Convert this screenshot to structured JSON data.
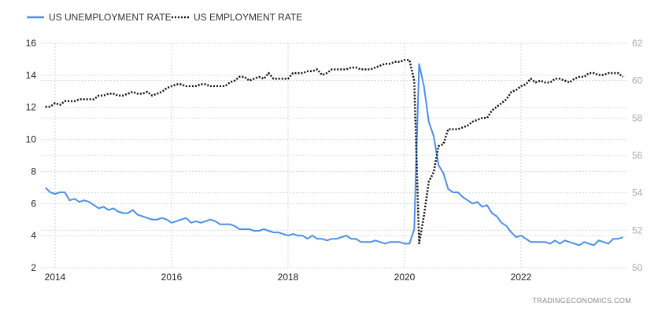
{
  "chart_data": {
    "type": "line",
    "title": "",
    "legend_position": "top-left",
    "watermark": "TRADINGECONOMICS.COM",
    "x_start": "2013-11",
    "x_frequency": "monthly",
    "x_ticks": [
      "2014",
      "2016",
      "2018",
      "2020",
      "2022"
    ],
    "y_left": {
      "range": [
        2,
        16
      ],
      "ticks": [
        "2",
        "4",
        "6",
        "8",
        "10",
        "12",
        "14",
        "16"
      ]
    },
    "y_right": {
      "range": [
        50,
        62
      ],
      "ticks": [
        "50",
        "52",
        "54",
        "56",
        "58",
        "60",
        "62"
      ]
    },
    "grid": true,
    "series": [
      {
        "name": "US UNEMPLOYMENT RATE",
        "axis": "left",
        "color": "#4a90e8",
        "style": "solid",
        "values": [
          7.0,
          6.7,
          6.6,
          6.7,
          6.7,
          6.2,
          6.3,
          6.1,
          6.2,
          6.1,
          5.9,
          5.7,
          5.8,
          5.6,
          5.7,
          5.5,
          5.4,
          5.4,
          5.6,
          5.3,
          5.2,
          5.1,
          5.0,
          5.0,
          5.1,
          5.0,
          4.8,
          4.9,
          5.0,
          5.1,
          4.8,
          4.9,
          4.8,
          4.9,
          5.0,
          4.9,
          4.7,
          4.7,
          4.7,
          4.6,
          4.4,
          4.4,
          4.4,
          4.3,
          4.3,
          4.4,
          4.3,
          4.2,
          4.2,
          4.1,
          4.0,
          4.1,
          4.0,
          4.0,
          3.8,
          4.0,
          3.8,
          3.8,
          3.7,
          3.8,
          3.8,
          3.9,
          4.0,
          3.8,
          3.8,
          3.6,
          3.6,
          3.6,
          3.7,
          3.6,
          3.5,
          3.6,
          3.6,
          3.6,
          3.5,
          3.5,
          4.4,
          14.7,
          13.3,
          11.1,
          10.2,
          8.4,
          7.9,
          6.9,
          6.7,
          6.7,
          6.4,
          6.2,
          6.0,
          6.1,
          5.8,
          5.9,
          5.4,
          5.2,
          4.8,
          4.6,
          4.2,
          3.9,
          4.0,
          3.8,
          3.6,
          3.6,
          3.6,
          3.6,
          3.5,
          3.7,
          3.5,
          3.7,
          3.6,
          3.5,
          3.4,
          3.6,
          3.5,
          3.4,
          3.7,
          3.6,
          3.5,
          3.8,
          3.8,
          3.9
        ]
      },
      {
        "name": "US EMPLOYMENT RATE",
        "axis": "right",
        "color": "#111111",
        "style": "dotted",
        "values": [
          58.6,
          58.6,
          58.8,
          58.7,
          58.9,
          58.9,
          58.9,
          59.0,
          59.0,
          59.0,
          59.0,
          59.2,
          59.2,
          59.3,
          59.3,
          59.2,
          59.2,
          59.3,
          59.4,
          59.3,
          59.3,
          59.4,
          59.2,
          59.3,
          59.4,
          59.6,
          59.7,
          59.8,
          59.8,
          59.7,
          59.7,
          59.7,
          59.8,
          59.8,
          59.7,
          59.7,
          59.7,
          59.7,
          59.9,
          60.0,
          60.2,
          60.2,
          60.0,
          60.1,
          60.2,
          60.1,
          60.4,
          60.1,
          60.1,
          60.1,
          60.1,
          60.4,
          60.4,
          60.4,
          60.5,
          60.5,
          60.6,
          60.3,
          60.4,
          60.6,
          60.6,
          60.6,
          60.6,
          60.7,
          60.7,
          60.6,
          60.6,
          60.6,
          60.7,
          60.8,
          60.9,
          60.9,
          61.0,
          61.0,
          61.1,
          61.1,
          60.0,
          51.3,
          52.8,
          54.6,
          55.1,
          56.5,
          56.6,
          57.4,
          57.4,
          57.4,
          57.5,
          57.6,
          57.8,
          57.9,
          58.0,
          58.0,
          58.4,
          58.6,
          58.8,
          59.0,
          59.4,
          59.5,
          59.7,
          59.8,
          60.1,
          59.9,
          60.0,
          59.9,
          59.9,
          60.1,
          60.1,
          60.0,
          59.9,
          60.1,
          60.2,
          60.2,
          60.4,
          60.4,
          60.3,
          60.3,
          60.4,
          60.4,
          60.4,
          60.2
        ]
      }
    ]
  }
}
